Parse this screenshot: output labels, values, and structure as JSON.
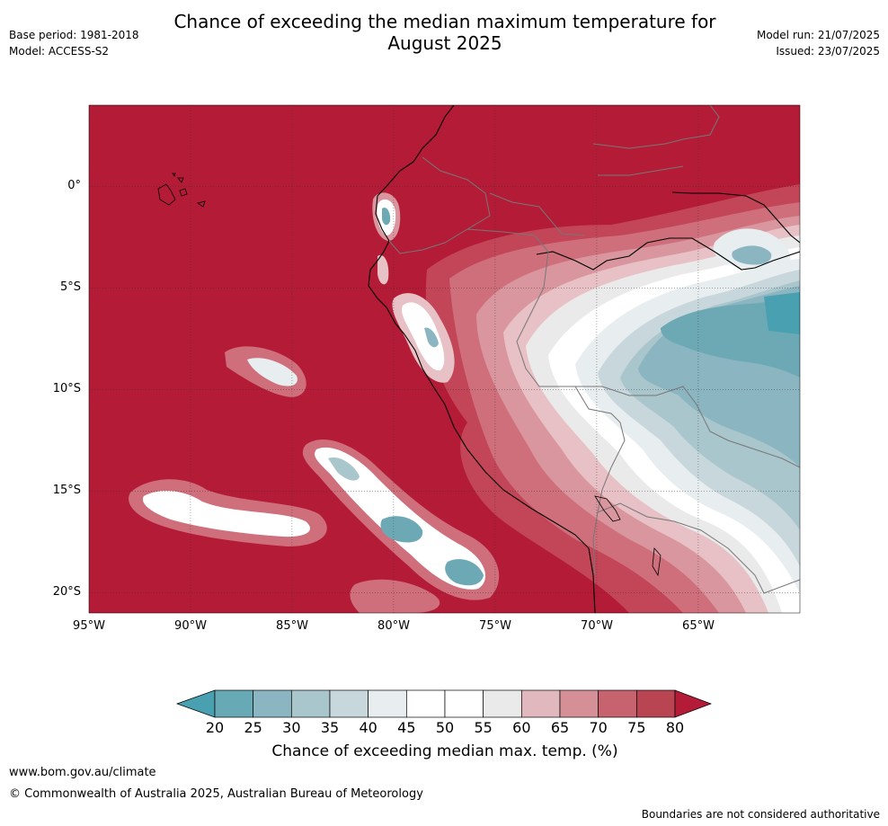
{
  "header": {
    "title_line1": "Chance of exceeding the median maximum temperature for",
    "title_line2": "August 2025",
    "base_period": "Base period: 1981-2018",
    "model": "Model: ACCESS-S2",
    "model_run": "Model run: 21/07/2025",
    "issued": "Issued: 23/07/2025"
  },
  "map": {
    "lat_ticks": [
      "0°",
      "5°S",
      "10°S",
      "15°S",
      "20°S"
    ],
    "lon_ticks": [
      "95°W",
      "90°W",
      "85°W",
      "80°W",
      "75°W",
      "70°W",
      "65°W"
    ],
    "lon_range": [
      -95,
      -60
    ],
    "lat_range": [
      -21,
      4
    ],
    "colors": {
      "c80": "#b41b37",
      "c75": "#c24657",
      "c70": "#cf6f7c",
      "c65": "#d9969e",
      "c60": "#e7c1c5",
      "c55": "#eaeaeb",
      "c50": "#ffffff",
      "c45": "#e8eef0",
      "c40": "#c8d7dc",
      "c35": "#aac6cd",
      "c30": "#8ab5c1",
      "c25": "#6ca9b5",
      "c20": "#48a0b1"
    }
  },
  "colorbar": {
    "ticks": [
      "20",
      "25",
      "30",
      "35",
      "40",
      "45",
      "50",
      "55",
      "60",
      "65",
      "70",
      "75",
      "80"
    ],
    "label": "Chance of exceeding median max. temp. (%)",
    "colors": [
      "#67a9b5",
      "#8ab5c1",
      "#aac6cd",
      "#c8d7dc",
      "#e8eef0",
      "#ffffff",
      "#ffffff",
      "#eaeaeb",
      "#e0b8bd",
      "#d49096",
      "#c6636f",
      "#b94553"
    ],
    "low_color": "#48a0b1",
    "high_color": "#b41b37"
  },
  "footer": {
    "url": "www.bom.gov.au/climate",
    "copyright": "© Commonwealth of Australia 2025, Australian Bureau of Meteorology",
    "disclaimer": "Boundaries are not considered authoritative"
  }
}
